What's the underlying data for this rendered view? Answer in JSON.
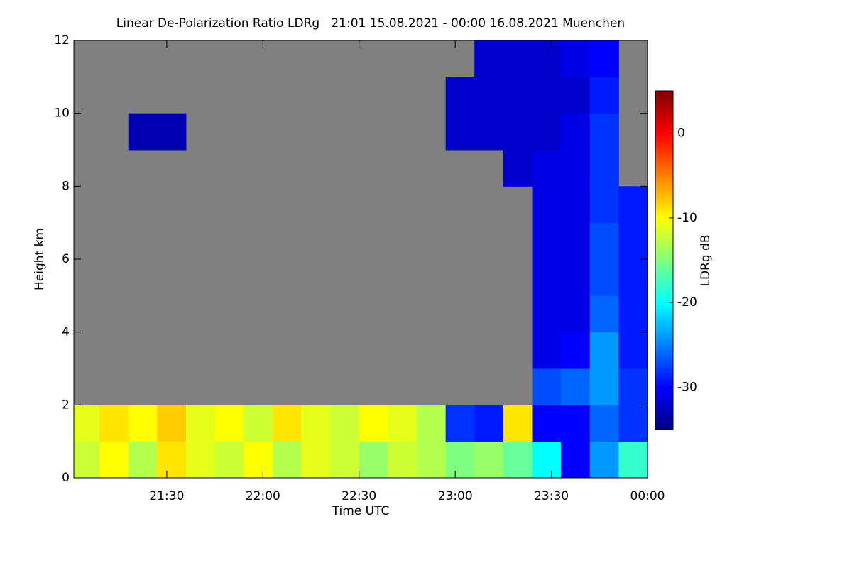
{
  "chart_data": {
    "type": "heatmap",
    "title": "Linear De-Polarization Ratio LDRg   21:01 15.08.2021 - 00:00 16.08.2021 Muenchen",
    "x_label": "Time UTC",
    "y_label": "Height km",
    "colorbar_label": "LDRg dB",
    "colormap": "jet",
    "nodata_color": "#808080",
    "x_edges": [
      21.0,
      21.15,
      21.3,
      21.45,
      21.6,
      21.75,
      21.9,
      22.05,
      22.2,
      22.35,
      22.5,
      22.65,
      22.8,
      22.95,
      23.1,
      23.25,
      23.4,
      23.55,
      23.7,
      23.85,
      24.0
    ],
    "y_edges": [
      0,
      1,
      2,
      3,
      4,
      5,
      6,
      7,
      8,
      9,
      10,
      11,
      12
    ],
    "z": [
      [
        -12,
        -10,
        -13,
        -9,
        -11,
        -12,
        -10,
        -13,
        -11,
        -12,
        -14,
        -12,
        -13,
        -15,
        -14,
        -16,
        -20,
        -30,
        -24,
        -18
      ],
      [
        -11,
        -9,
        -10,
        -8,
        -11,
        -10,
        -12,
        -9,
        -11,
        -12,
        -10,
        -11,
        -13,
        -28,
        -29,
        -9,
        -30,
        -30,
        -26,
        -28
      ],
      [
        null,
        null,
        null,
        null,
        null,
        null,
        null,
        null,
        null,
        null,
        null,
        null,
        null,
        null,
        null,
        null,
        -27,
        -26,
        -24,
        -28
      ],
      [
        null,
        null,
        null,
        null,
        null,
        null,
        null,
        null,
        null,
        null,
        null,
        null,
        null,
        null,
        null,
        null,
        -31,
        -30,
        -24,
        -29
      ],
      [
        null,
        null,
        null,
        null,
        null,
        null,
        null,
        null,
        null,
        null,
        null,
        null,
        null,
        null,
        null,
        null,
        -31,
        -31,
        -26,
        -29
      ],
      [
        null,
        null,
        null,
        null,
        null,
        null,
        null,
        null,
        null,
        null,
        null,
        null,
        null,
        null,
        null,
        null,
        -31,
        -31,
        -27,
        -29
      ],
      [
        null,
        null,
        null,
        null,
        null,
        null,
        null,
        null,
        null,
        null,
        null,
        null,
        null,
        null,
        null,
        null,
        -31,
        -31,
        -27,
        -29
      ],
      [
        null,
        null,
        null,
        null,
        null,
        null,
        null,
        null,
        null,
        null,
        null,
        null,
        null,
        null,
        null,
        null,
        -31,
        -31,
        -28,
        -29
      ],
      [
        null,
        null,
        null,
        null,
        null,
        null,
        null,
        null,
        null,
        null,
        null,
        null,
        null,
        null,
        null,
        -32,
        -31,
        -31,
        -28,
        null
      ],
      [
        null,
        null,
        -33,
        -33,
        null,
        null,
        null,
        null,
        null,
        null,
        null,
        null,
        null,
        -32,
        -32,
        -32,
        -32,
        -31,
        -28,
        null
      ],
      [
        null,
        null,
        null,
        null,
        null,
        null,
        null,
        null,
        null,
        null,
        null,
        null,
        null,
        -32,
        -32,
        -32,
        -32,
        -32,
        -29,
        null
      ],
      [
        null,
        null,
        null,
        null,
        null,
        null,
        null,
        null,
        null,
        null,
        null,
        null,
        null,
        null,
        -32,
        -32,
        -32,
        -31,
        -30,
        null
      ]
    ],
    "xlim": [
      21.0167,
      24.0
    ],
    "xticks": [
      {
        "value": 21.5,
        "label": "21:30"
      },
      {
        "value": 22.0,
        "label": "22:00"
      },
      {
        "value": 22.5,
        "label": "22:30"
      },
      {
        "value": 23.0,
        "label": "23:00"
      },
      {
        "value": 23.5,
        "label": "23:30"
      },
      {
        "value": 24.0,
        "label": "00:00"
      }
    ],
    "ylim": [
      0,
      12
    ],
    "yticks": [
      0,
      2,
      4,
      6,
      8,
      10,
      12
    ],
    "zlim": [
      -35,
      5
    ],
    "zticks": [
      -30,
      -20,
      -10,
      0
    ]
  }
}
